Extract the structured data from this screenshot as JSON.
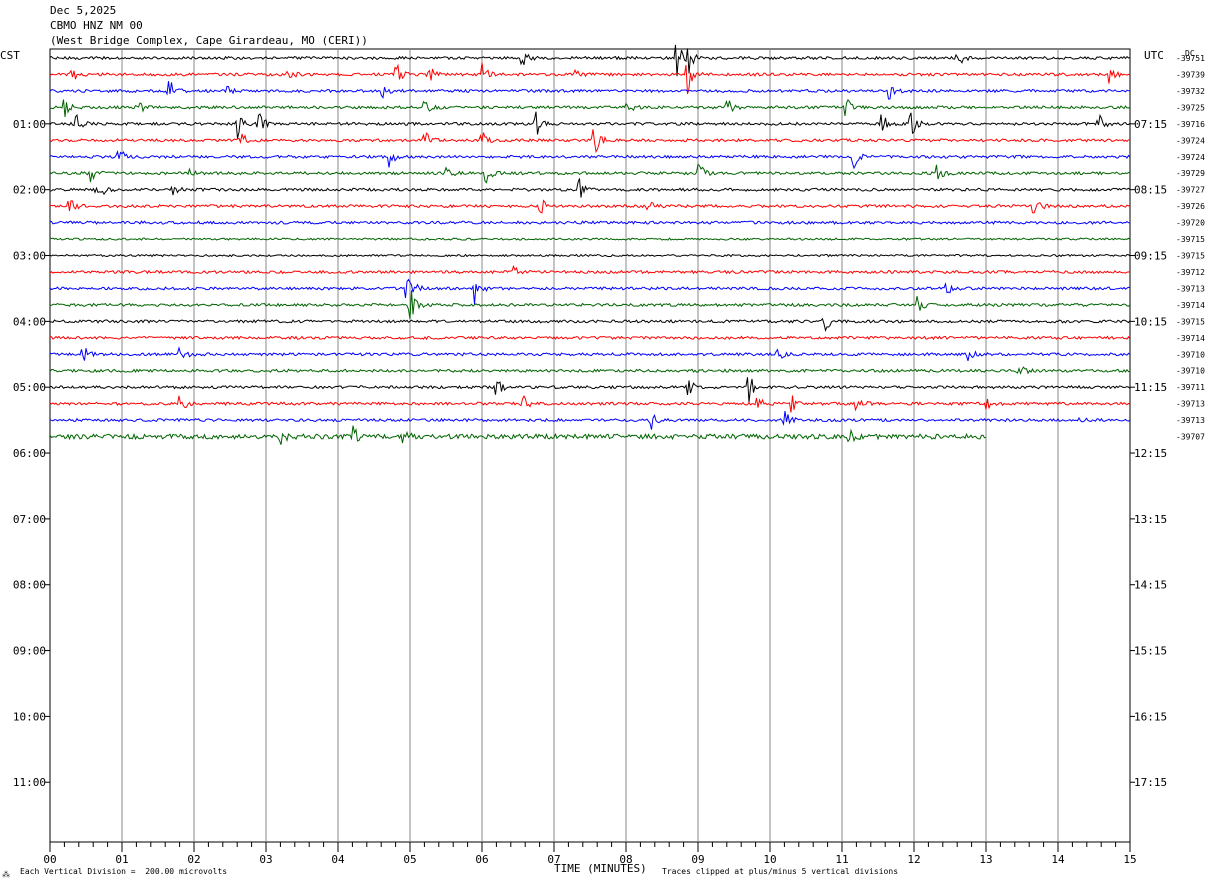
{
  "header": {
    "date": "Dec 5,2025",
    "station": "CBMO HNZ NM 00",
    "location": "(West Bridge Complex, Cape Girardeau, MO (CERI))"
  },
  "left_tz": "CST",
  "right_tz": "UTC",
  "dc_label": "DC",
  "footer": {
    "scale": "Each Vertical Division =  200.00 microvolts",
    "clip": "Traces clipped at plus/minus 5 vertical divisions"
  },
  "chart_data": {
    "type": "line",
    "title": "",
    "xlabel": "TIME (MINUTES)",
    "ylabel": "",
    "xlim": [
      0,
      15
    ],
    "x_ticks": [
      "00",
      "01",
      "02",
      "03",
      "04",
      "05",
      "06",
      "07",
      "08",
      "09",
      "10",
      "11",
      "12",
      "13",
      "14",
      "15"
    ],
    "left_time_labels": [
      "01:00",
      "02:00",
      "03:00",
      "04:00",
      "05:00",
      "06:00",
      "07:00",
      "08:00",
      "09:00",
      "10:00",
      "11:00"
    ],
    "right_time_labels": [
      "07:15",
      "08:15",
      "09:15",
      "10:15",
      "11:15",
      "12:15",
      "13:15",
      "14:15",
      "15:15",
      "16:15",
      "17:15"
    ],
    "trace_colors": [
      "#000000",
      "#ff0000",
      "#0000ff",
      "#006400"
    ],
    "dc_offsets": [
      "-39751",
      "-39739",
      "-39732",
      "-39725",
      "-39716",
      "-39724",
      "-39724",
      "-39729",
      "-39727",
      "-39726",
      "-39720",
      "-39715",
      "-39715",
      "-39712",
      "-39713",
      "-39714",
      "-39715",
      "-39714",
      "-39710",
      "-39710",
      "-39711",
      "-39713",
      "-39713",
      "-39707"
    ],
    "last_trace_end_minute": 13.0,
    "events": [
      [
        [
          6.55,
          0.5
        ],
        [
          8.7,
          1
        ],
        [
          8.85,
          0.9
        ],
        [
          12.6,
          0.6
        ]
      ],
      [
        [
          0.3,
          0.5
        ],
        [
          3.3,
          0.4
        ],
        [
          4.8,
          0.6
        ],
        [
          5.25,
          0.6
        ],
        [
          6.0,
          0.5
        ],
        [
          7.3,
          0.4
        ],
        [
          8.85,
          0.9
        ],
        [
          14.7,
          0.5
        ]
      ],
      [
        [
          1.65,
          0.6
        ],
        [
          2.45,
          0.4
        ],
        [
          4.6,
          0.5
        ],
        [
          11.65,
          0.5
        ]
      ],
      [
        [
          0.2,
          0.5
        ],
        [
          1.2,
          0.5
        ],
        [
          5.2,
          0.6
        ],
        [
          8.0,
          0.4
        ],
        [
          9.4,
          0.5
        ],
        [
          11.05,
          0.5
        ]
      ],
      [
        [
          0.35,
          0.8
        ],
        [
          2.6,
          0.7
        ],
        [
          2.9,
          0.8
        ],
        [
          6.75,
          0.6
        ],
        [
          11.55,
          0.7
        ],
        [
          11.95,
          0.7
        ],
        [
          14.55,
          0.6
        ]
      ],
      [
        [
          2.65,
          0.4
        ],
        [
          5.2,
          0.5
        ],
        [
          6.0,
          0.5
        ],
        [
          7.55,
          1
        ]
      ],
      [
        [
          0.95,
          0.5
        ],
        [
          4.7,
          0.6
        ],
        [
          11.15,
          0.6
        ]
      ],
      [
        [
          0.55,
          0.5
        ],
        [
          1.9,
          0.5
        ],
        [
          5.5,
          0.4
        ],
        [
          6.05,
          0.5
        ],
        [
          9.0,
          0.6
        ],
        [
          12.3,
          0.5
        ]
      ],
      [
        [
          0.65,
          0.8
        ],
        [
          1.7,
          0.3
        ],
        [
          7.35,
          0.6
        ]
      ],
      [
        [
          0.25,
          0.5
        ],
        [
          6.8,
          0.5
        ],
        [
          8.3,
          0.3
        ],
        [
          13.65,
          0.6
        ]
      ],
      [],
      [],
      [],
      [
        [
          6.45,
          0.4
        ]
      ],
      [
        [
          4.95,
          0.7
        ],
        [
          5.0,
          0.5
        ],
        [
          5.9,
          0.8
        ],
        [
          12.45,
          0.4
        ]
      ],
      [
        [
          5.0,
          1
        ],
        [
          12.05,
          0.5
        ]
      ],
      [
        [
          10.75,
          0.6
        ]
      ],
      [],
      [
        [
          0.45,
          0.5
        ],
        [
          1.8,
          0.5
        ],
        [
          10.1,
          0.4
        ],
        [
          12.75,
          0.4
        ]
      ],
      [
        [
          13.45,
          0.5
        ]
      ],
      [
        [
          6.2,
          0.6
        ],
        [
          8.85,
          0.6
        ],
        [
          9.7,
          0.8
        ]
      ],
      [
        [
          1.8,
          0.5
        ],
        [
          6.55,
          0.5
        ],
        [
          9.8,
          0.6
        ],
        [
          10.3,
          0.5
        ],
        [
          11.2,
          0.5
        ],
        [
          13.0,
          0.3
        ]
      ],
      [
        [
          8.35,
          0.4
        ],
        [
          10.2,
          0.5
        ],
        [
          14.3,
          0.3
        ]
      ],
      [
        [
          3.2,
          0.4
        ],
        [
          4.2,
          0.5
        ],
        [
          4.9,
          0.5
        ],
        [
          11.1,
          0.4
        ]
      ]
    ]
  }
}
